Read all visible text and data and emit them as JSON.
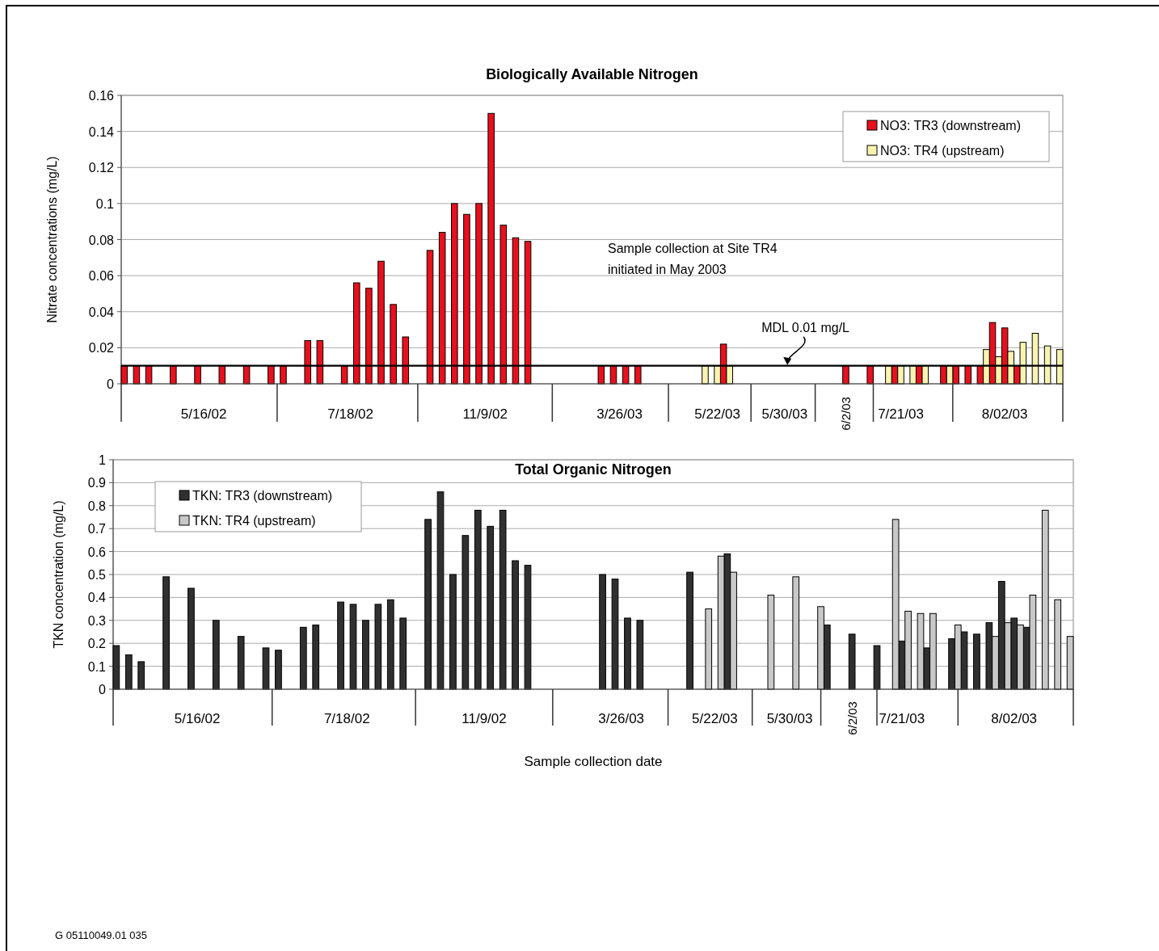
{
  "chart_data": [
    {
      "type": "bar",
      "title": "Biologically Available Nitrogen",
      "ylabel": "Nitrate concentrations (mg/L)",
      "categories": [
        null,
        null,
        null,
        null,
        null,
        null,
        null,
        null,
        null,
        null,
        null,
        null,
        null,
        "5/16/02",
        null,
        null,
        null,
        null,
        null,
        null,
        null,
        null,
        null,
        null,
        null,
        null,
        null,
        null,
        null,
        null,
        null,
        null,
        null,
        null,
        null,
        null,
        null,
        "7/18/02",
        null,
        null,
        null,
        null,
        null,
        null,
        null,
        null,
        null,
        null,
        null,
        null,
        null,
        null,
        null,
        null,
        null,
        null,
        null,
        null,
        null,
        "11/9/02",
        null,
        null,
        null,
        null,
        null,
        null,
        null,
        null,
        null,
        null,
        null,
        null,
        null,
        null,
        null,
        null,
        null,
        null,
        null,
        null,
        null,
        "3/26/03",
        null,
        null,
        null,
        null,
        null,
        null,
        null,
        null,
        null,
        null,
        null,
        null,
        null,
        null,
        null,
        "5/22/03",
        null,
        null,
        null,
        null,
        null,
        null,
        null,
        null,
        null,
        null,
        "5/30/03",
        null,
        null,
        null,
        null,
        null,
        null,
        null,
        null,
        null,
        "6/2/03",
        null,
        null,
        null,
        null,
        null,
        null,
        null,
        null,
        "7/21/03",
        null,
        null,
        null,
        null,
        null,
        null,
        null,
        null,
        null,
        null,
        null,
        null,
        null,
        null,
        null,
        null,
        "8/02/03",
        null,
        null,
        null,
        null,
        null,
        null,
        null,
        null,
        null
      ],
      "series": [
        {
          "name": "NO3: TR3 (downstream)",
          "color": "#e8101c",
          "values": [
            0.01,
            null,
            0.01,
            null,
            0.01,
            null,
            null,
            null,
            0.01,
            null,
            null,
            null,
            0.01,
            null,
            null,
            null,
            0.01,
            null,
            null,
            null,
            0.01,
            null,
            null,
            null,
            0.01,
            null,
            0.01,
            null,
            null,
            null,
            0.024,
            null,
            0.024,
            null,
            null,
            null,
            0.01,
            null,
            0.056,
            null,
            0.053,
            null,
            0.068,
            null,
            0.044,
            null,
            0.026,
            null,
            null,
            null,
            0.074,
            null,
            0.084,
            null,
            0.1,
            null,
            0.094,
            null,
            0.1,
            null,
            0.15,
            null,
            0.088,
            null,
            0.081,
            null,
            0.079,
            null,
            null,
            null,
            null,
            null,
            null,
            null,
            null,
            null,
            null,
            null,
            0.01,
            null,
            0.01,
            null,
            0.01,
            null,
            0.01,
            null,
            null,
            null,
            null,
            null,
            null,
            null,
            null,
            null,
            null,
            null,
            null,
            null,
            0.022,
            null,
            null,
            null,
            null,
            null,
            null,
            null,
            null,
            null,
            null,
            null,
            null,
            null,
            null,
            null,
            null,
            null,
            null,
            null,
            0.01,
            null,
            null,
            null,
            0.01,
            null,
            null,
            null,
            0.01,
            null,
            null,
            null,
            0.01,
            null,
            null,
            null,
            0.01,
            null,
            0.01,
            null,
            0.01,
            null,
            0.01,
            null,
            0.034,
            null,
            0.031,
            null,
            0.01,
            null,
            null,
            null,
            null,
            null,
            null,
            null
          ]
        },
        {
          "name": "NO3: TR4 (upstream)",
          "color": "#f8f4b0",
          "values": [
            null,
            null,
            null,
            null,
            null,
            null,
            null,
            null,
            null,
            null,
            null,
            null,
            null,
            null,
            null,
            null,
            null,
            null,
            null,
            null,
            null,
            null,
            null,
            null,
            null,
            null,
            null,
            null,
            null,
            null,
            null,
            null,
            null,
            null,
            null,
            null,
            null,
            null,
            null,
            null,
            null,
            null,
            null,
            null,
            null,
            null,
            null,
            null,
            null,
            null,
            null,
            null,
            null,
            null,
            null,
            null,
            null,
            null,
            null,
            null,
            null,
            null,
            null,
            null,
            null,
            null,
            null,
            null,
            null,
            null,
            null,
            null,
            null,
            null,
            null,
            null,
            null,
            null,
            null,
            null,
            null,
            null,
            null,
            null,
            null,
            null,
            null,
            null,
            null,
            null,
            null,
            null,
            null,
            null,
            null,
            0.01,
            null,
            0.01,
            null,
            0.01,
            null,
            null,
            null,
            null,
            null,
            null,
            null,
            null,
            null,
            null,
            null,
            null,
            null,
            null,
            null,
            null,
            null,
            null,
            null,
            null,
            null,
            null,
            null,
            null,
            null,
            0.01,
            null,
            0.01,
            null,
            0.01,
            null,
            0.01,
            null,
            null,
            null,
            0.01,
            null,
            null,
            null,
            null,
            null,
            0.019,
            null,
            0.015,
            null,
            0.018,
            null,
            0.023,
            null,
            0.028,
            null,
            0.021,
            null,
            0.019
          ]
        }
      ],
      "ylim": [
        0,
        0.16
      ],
      "yticks": [
        0,
        0.02,
        0.04,
        0.06,
        0.08,
        0.1,
        0.12,
        0.14,
        0.16
      ],
      "grid": "y",
      "legend": "top right",
      "ref_lines": [
        {
          "axis": "y",
          "value": 0.01,
          "label": "MDL 0.01 mg/L",
          "color": "#000000"
        }
      ],
      "annotations": [
        "Sample collection at Site TR4 initiated in May 2003"
      ]
    },
    {
      "type": "bar",
      "title": "Total Organic Nitrogen",
      "ylabel": "TKN concentration (mg/L)",
      "xlabel": "Sample collection date",
      "categories": [
        null,
        null,
        null,
        null,
        null,
        null,
        null,
        null,
        null,
        null,
        null,
        null,
        null,
        "5/16/02",
        null,
        null,
        null,
        null,
        null,
        null,
        null,
        null,
        null,
        null,
        null,
        null,
        null,
        null,
        null,
        null,
        null,
        null,
        null,
        null,
        null,
        null,
        null,
        "7/18/02",
        null,
        null,
        null,
        null,
        null,
        null,
        null,
        null,
        null,
        null,
        null,
        null,
        null,
        null,
        null,
        null,
        null,
        null,
        null,
        null,
        null,
        "11/9/02",
        null,
        null,
        null,
        null,
        null,
        null,
        null,
        null,
        null,
        null,
        null,
        null,
        null,
        null,
        null,
        null,
        null,
        null,
        null,
        null,
        null,
        "3/26/03",
        null,
        null,
        null,
        null,
        null,
        null,
        null,
        null,
        null,
        null,
        null,
        null,
        null,
        null,
        "5/22/03",
        null,
        null,
        null,
        null,
        null,
        null,
        null,
        null,
        null,
        null,
        null,
        "5/30/03",
        null,
        null,
        null,
        null,
        null,
        null,
        null,
        null,
        null,
        "6/2/03",
        null,
        null,
        null,
        null,
        null,
        null,
        null,
        "7/21/03",
        null,
        null,
        null,
        null,
        null,
        null,
        null,
        null,
        null,
        null,
        null,
        null,
        null,
        null,
        null,
        null,
        null,
        "8/02/03",
        null,
        null,
        null,
        null,
        null,
        null,
        null,
        null,
        null
      ],
      "series": [
        {
          "name": "TKN: TR3 (downstream)",
          "color": "#303030",
          "values": [
            0.19,
            null,
            0.15,
            null,
            0.12,
            null,
            null,
            null,
            0.49,
            null,
            null,
            null,
            0.44,
            null,
            null,
            null,
            0.3,
            null,
            null,
            null,
            0.23,
            null,
            null,
            null,
            0.18,
            null,
            0.17,
            null,
            null,
            null,
            0.27,
            null,
            0.28,
            null,
            null,
            null,
            0.38,
            null,
            0.37,
            null,
            0.3,
            null,
            0.37,
            null,
            0.39,
            null,
            0.31,
            null,
            null,
            null,
            0.74,
            null,
            0.86,
            null,
            0.5,
            null,
            0.67,
            null,
            0.78,
            null,
            0.71,
            null,
            0.78,
            null,
            0.56,
            null,
            0.54,
            null,
            null,
            null,
            null,
            null,
            null,
            null,
            null,
            null,
            null,
            null,
            0.5,
            null,
            0.48,
            null,
            0.31,
            null,
            0.3,
            null,
            null,
            null,
            null,
            null,
            null,
            null,
            0.51,
            null,
            null,
            null,
            null,
            null,
            0.59,
            null,
            null,
            null,
            null,
            null,
            null,
            null,
            null,
            null,
            null,
            null,
            null,
            null,
            null,
            null,
            0.28,
            null,
            null,
            null,
            0.24,
            null,
            null,
            null,
            0.19,
            null,
            null,
            null,
            0.21,
            null,
            null,
            null,
            0.18,
            null,
            null,
            null,
            0.22,
            null,
            0.25,
            null,
            0.24,
            null,
            0.29,
            null,
            0.47,
            null,
            0.31,
            null,
            0.27,
            null,
            null,
            null,
            null,
            null,
            null,
            null
          ]
        },
        {
          "name": "TKN: TR4 (upstream)",
          "color": "#c8c8c8",
          "values": [
            null,
            null,
            null,
            null,
            null,
            null,
            null,
            null,
            null,
            null,
            null,
            null,
            null,
            null,
            null,
            null,
            null,
            null,
            null,
            null,
            null,
            null,
            null,
            null,
            null,
            null,
            null,
            null,
            null,
            null,
            null,
            null,
            null,
            null,
            null,
            null,
            null,
            null,
            null,
            null,
            null,
            null,
            null,
            null,
            null,
            null,
            null,
            null,
            null,
            null,
            null,
            null,
            null,
            null,
            null,
            null,
            null,
            null,
            null,
            null,
            null,
            null,
            null,
            null,
            null,
            null,
            null,
            null,
            null,
            null,
            null,
            null,
            null,
            null,
            null,
            null,
            null,
            null,
            null,
            null,
            null,
            null,
            null,
            null,
            null,
            null,
            null,
            null,
            null,
            null,
            null,
            null,
            null,
            null,
            null,
            0.35,
            null,
            0.58,
            null,
            0.51,
            null,
            null,
            null,
            null,
            null,
            0.41,
            null,
            null,
            null,
            0.49,
            null,
            null,
            null,
            0.36,
            null,
            null,
            null,
            null,
            null,
            null,
            null,
            null,
            null,
            null,
            null,
            0.74,
            null,
            0.34,
            null,
            0.33,
            null,
            0.33,
            null,
            null,
            null,
            0.28,
            null,
            null,
            null,
            null,
            null,
            0.23,
            null,
            0.29,
            null,
            0.28,
            null,
            0.41,
            null,
            0.78,
            null,
            0.39,
            null,
            0.23
          ]
        }
      ],
      "ylim": [
        0,
        1
      ],
      "yticks": [
        0,
        0.1,
        0.2,
        0.3,
        0.4,
        0.5,
        0.6,
        0.7,
        0.8,
        0.9,
        1
      ],
      "grid": "y",
      "legend": "top left",
      "annotations": [
        "G 05110049.01 035"
      ]
    }
  ]
}
